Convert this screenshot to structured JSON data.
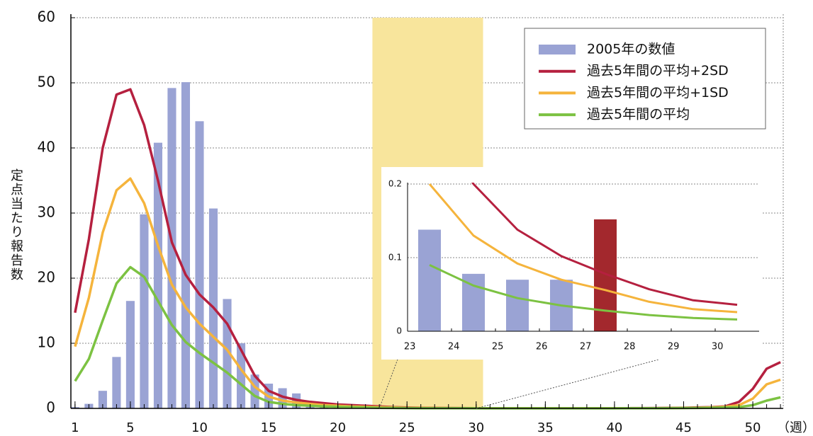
{
  "chart_data": [
    {
      "type": "bar_line",
      "y_label": "定点当たり報告数",
      "x_label": "（週）",
      "x": [
        1,
        2,
        3,
        4,
        5,
        6,
        7,
        8,
        9,
        10,
        11,
        12,
        13,
        14,
        15,
        16,
        17,
        18,
        19,
        20,
        21,
        22,
        23,
        24,
        25,
        26,
        27,
        28,
        29,
        30,
        31,
        32,
        33,
        34,
        35,
        36,
        37,
        38,
        39,
        40,
        41,
        42,
        43,
        44,
        45,
        46,
        47,
        48,
        49,
        50,
        51,
        52
      ],
      "xlim": [
        0.7,
        52.2
      ],
      "xticks": [
        1,
        5,
        10,
        15,
        20,
        25,
        30,
        35,
        40,
        45,
        50
      ],
      "ylim": [
        0,
        60
      ],
      "yticks": [
        0,
        10,
        20,
        30,
        40,
        50,
        60
      ],
      "grid": true,
      "legend": "upper right",
      "highlight_range": [
        22.5,
        30.5
      ],
      "highlight_color": "#f8e59c",
      "series": [
        {
          "name": "2005年の数値",
          "kind": "bar",
          "color": "#9aa3d4",
          "values": [
            0.2,
            0.7,
            2.7,
            7.9,
            16.5,
            29.8,
            40.8,
            49.2,
            50.1,
            44.1,
            30.7,
            16.8,
            10.0,
            5.2,
            3.8,
            3.1,
            2.3,
            0.8,
            0.5,
            0.4,
            0.3,
            0.2,
            0.138,
            0.078,
            0.07,
            0.07,
            0.152,
            null,
            null,
            null,
            null,
            null,
            null,
            null,
            null,
            null,
            null,
            null,
            null,
            null,
            null,
            null,
            null,
            null,
            null,
            null,
            null,
            null,
            null,
            null,
            null,
            null
          ]
        },
        {
          "name": "過去5年間の平均+2SD",
          "kind": "line",
          "color": "#b5203f",
          "values": [
            14.7,
            26,
            40,
            48.2,
            49,
            43.5,
            35,
            25.5,
            20.5,
            17.5,
            15.5,
            13,
            9,
            5,
            2.7,
            1.8,
            1.3,
            1,
            0.8,
            0.6,
            0.5,
            0.4,
            0.3,
            0.2,
            0.138,
            0.102,
            0.078,
            0.057,
            0.042,
            0.036,
            0.03,
            0.03,
            0.03,
            0.03,
            0.03,
            0.03,
            0.03,
            0.03,
            0.03,
            0.03,
            0.03,
            0.04,
            0.05,
            0.08,
            0.1,
            0.15,
            0.2,
            0.3,
            1.0,
            3.0,
            6.1,
            7.1
          ]
        },
        {
          "name": "過去5年間の平均+1SD",
          "kind": "line",
          "color": "#f5b43c",
          "values": [
            9.5,
            17,
            27,
            33.5,
            35.3,
            31.5,
            25,
            19,
            15.5,
            13,
            11,
            9,
            6,
            3.3,
            1.8,
            1.2,
            0.9,
            0.7,
            0.5,
            0.4,
            0.3,
            0.25,
            0.2,
            0.13,
            0.092,
            0.07,
            0.056,
            0.04,
            0.03,
            0.026,
            0.02,
            0.02,
            0.02,
            0.02,
            0.02,
            0.02,
            0.02,
            0.02,
            0.02,
            0.02,
            0.02,
            0.025,
            0.03,
            0.05,
            0.07,
            0.1,
            0.15,
            0.25,
            0.5,
            1.5,
            3.7,
            4.4
          ]
        },
        {
          "name": "過去5年間の平均",
          "kind": "line",
          "color": "#7cc242",
          "values": [
            4.2,
            7.6,
            13.5,
            19.2,
            21.7,
            20.2,
            16.5,
            12.8,
            10.2,
            8.5,
            7,
            5.5,
            3.7,
            1.9,
            1,
            0.7,
            0.5,
            0.4,
            0.3,
            0.25,
            0.2,
            0.15,
            0.09,
            0.062,
            0.045,
            0.035,
            0.028,
            0.022,
            0.018,
            0.016,
            0.015,
            0.015,
            0.015,
            0.015,
            0.015,
            0.015,
            0.015,
            0.015,
            0.015,
            0.015,
            0.02,
            0.02,
            0.03,
            0.04,
            0.05,
            0.07,
            0.1,
            0.15,
            0.2,
            0.5,
            1.2,
            1.7
          ]
        }
      ]
    },
    {
      "type": "bar_line",
      "categories": [
        "23",
        "24",
        "25",
        "26",
        "27",
        "28",
        "29",
        "30"
      ],
      "ylim": [
        0,
        0.2
      ],
      "yticks": [
        0,
        0.1,
        0.2
      ],
      "grid": true,
      "series": [
        {
          "kind": "bar",
          "colors": [
            "#9aa3d4",
            "#9aa3d4",
            "#9aa3d4",
            "#9aa3d4",
            "#a3282d",
            "#9aa3d4",
            "#9aa3d4",
            "#9aa3d4"
          ],
          "values": [
            0.138,
            0.078,
            0.07,
            0.07,
            0.152,
            null,
            null,
            null
          ]
        },
        {
          "kind": "line",
          "color": "#b5203f",
          "values": [
            0.3,
            0.2,
            0.138,
            0.102,
            0.078,
            0.057,
            0.042,
            0.036
          ]
        },
        {
          "kind": "line",
          "color": "#f5b43c",
          "values": [
            0.2,
            0.13,
            0.092,
            0.07,
            0.056,
            0.04,
            0.03,
            0.026
          ]
        },
        {
          "kind": "line",
          "color": "#7cc242",
          "values": [
            0.09,
            0.062,
            0.045,
            0.035,
            0.028,
            0.022,
            0.018,
            0.016
          ]
        }
      ]
    }
  ]
}
